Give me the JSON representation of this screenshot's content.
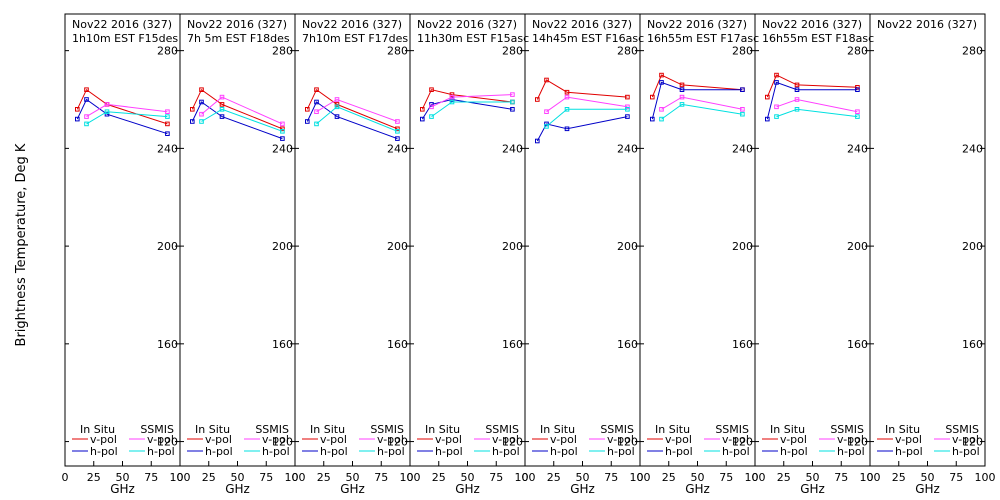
{
  "ylabel": "Brightness Temperature, Deg K",
  "legend": {
    "insitu_label": "In Situ",
    "ssmis_label": "SSMIS",
    "vpol": "v-pol",
    "hpol": "h-pol"
  },
  "colors": {
    "insitu_v": "#e00000",
    "insitu_h": "#0000c8",
    "ssmis_v": "#ff40ff",
    "ssmis_h": "#00e0e0"
  },
  "chart_data": {
    "type": "line",
    "x_ticks": [
      "0",
      "25",
      "50",
      "75",
      "100"
    ],
    "xlim": [
      0,
      100
    ],
    "y_ticks": [
      "120",
      "160",
      "200",
      "240",
      "280"
    ],
    "ylim": [
      110,
      295
    ],
    "panels": [
      {
        "line1": "Nov22 2016 (327)",
        "line2": "1h10m EST F15des",
        "xlabel": "GHz",
        "x": [
          10.7,
          18.7,
          36.5,
          89
        ],
        "series": [
          {
            "name": "In Situ v-pol",
            "values": [
              256,
              264,
              258,
              250
            ]
          },
          {
            "name": "In Situ h-pol",
            "values": [
              252,
              260,
              254,
              246
            ]
          },
          {
            "name": "SSMIS v-pol",
            "values": [
              null,
              253,
              258,
              255
            ]
          },
          {
            "name": "SSMIS h-pol",
            "values": [
              null,
              250,
              255,
              253
            ]
          }
        ]
      },
      {
        "line1": "Nov22 2016 (327)",
        "line2": "7h 5m  EST F18des",
        "xlabel": "GHz",
        "x": [
          10.7,
          18.7,
          36.5,
          89
        ],
        "series": [
          {
            "name": "In Situ v-pol",
            "values": [
              256,
              264,
              258,
              248
            ]
          },
          {
            "name": "In Situ h-pol",
            "values": [
              251,
              259,
              253,
              244
            ]
          },
          {
            "name": "SSMIS v-pol",
            "values": [
              null,
              254,
              261,
              250
            ]
          },
          {
            "name": "SSMIS h-pol",
            "values": [
              null,
              251,
              256,
              247
            ]
          }
        ]
      },
      {
        "line1": "Nov22 2016 (327)",
        "line2": "7h10m EST F17des",
        "xlabel": "GHz",
        "x": [
          10.7,
          18.7,
          36.5,
          89
        ],
        "series": [
          {
            "name": "In Situ v-pol",
            "values": [
              256,
              264,
              258,
              248
            ]
          },
          {
            "name": "In Situ h-pol",
            "values": [
              251,
              259,
              253,
              244
            ]
          },
          {
            "name": "SSMIS v-pol",
            "values": [
              null,
              255,
              260,
              251
            ]
          },
          {
            "name": "SSMIS h-pol",
            "values": [
              null,
              250,
              257,
              247
            ]
          }
        ]
      },
      {
        "line1": "Nov22 2016 (327)",
        "line2": "11h30m EST F15asc",
        "xlabel": "GHz",
        "x": [
          10.7,
          18.7,
          36.5,
          89
        ],
        "series": [
          {
            "name": "In Situ v-pol",
            "values": [
              256,
              264,
              262,
              259
            ]
          },
          {
            "name": "In Situ h-pol",
            "values": [
              252,
              258,
              260,
              256
            ]
          },
          {
            "name": "SSMIS v-pol",
            "values": [
              null,
              257,
              261,
              262
            ]
          },
          {
            "name": "SSMIS h-pol",
            "values": [
              null,
              253,
              259,
              259
            ]
          }
        ]
      },
      {
        "line1": "Nov22 2016 (327)",
        "line2": "14h45m EST F16asc",
        "xlabel": "GHz",
        "x": [
          10.7,
          18.7,
          36.5,
          89
        ],
        "series": [
          {
            "name": "In Situ v-pol",
            "values": [
              260,
              268,
              263,
              261
            ]
          },
          {
            "name": "In Situ h-pol",
            "values": [
              243,
              250,
              248,
              253
            ]
          },
          {
            "name": "SSMIS v-pol",
            "values": [
              null,
              255,
              261,
              257
            ]
          },
          {
            "name": "SSMIS h-pol",
            "values": [
              null,
              249,
              256,
              256
            ]
          }
        ]
      },
      {
        "line1": "Nov22 2016 (327)",
        "line2": "16h55m EST F17asc",
        "xlabel": "GHz",
        "x": [
          10.7,
          18.7,
          36.5,
          89
        ],
        "series": [
          {
            "name": "In Situ v-pol",
            "values": [
              261,
              270,
              266,
              264
            ]
          },
          {
            "name": "In Situ h-pol",
            "values": [
              252,
              267,
              264,
              264
            ]
          },
          {
            "name": "SSMIS v-pol",
            "values": [
              null,
              256,
              261,
              256
            ]
          },
          {
            "name": "SSMIS h-pol",
            "values": [
              null,
              252,
              258,
              254
            ]
          }
        ]
      },
      {
        "line1": "Nov22 2016 (327)",
        "line2": "16h55m EST F18asc",
        "xlabel": "GHz",
        "x": [
          10.7,
          18.7,
          36.5,
          89
        ],
        "series": [
          {
            "name": "In Situ v-pol",
            "values": [
              261,
              270,
              266,
              265
            ]
          },
          {
            "name": "In Situ h-pol",
            "values": [
              252,
              267,
              264,
              264
            ]
          },
          {
            "name": "SSMIS v-pol",
            "values": [
              null,
              257,
              260,
              255
            ]
          },
          {
            "name": "SSMIS h-pol",
            "values": [
              null,
              253,
              256,
              253
            ]
          }
        ]
      },
      {
        "line1": "Nov22 2016 (327)",
        "line2": "",
        "xlabel": "GHz",
        "x": [],
        "series": []
      }
    ]
  }
}
